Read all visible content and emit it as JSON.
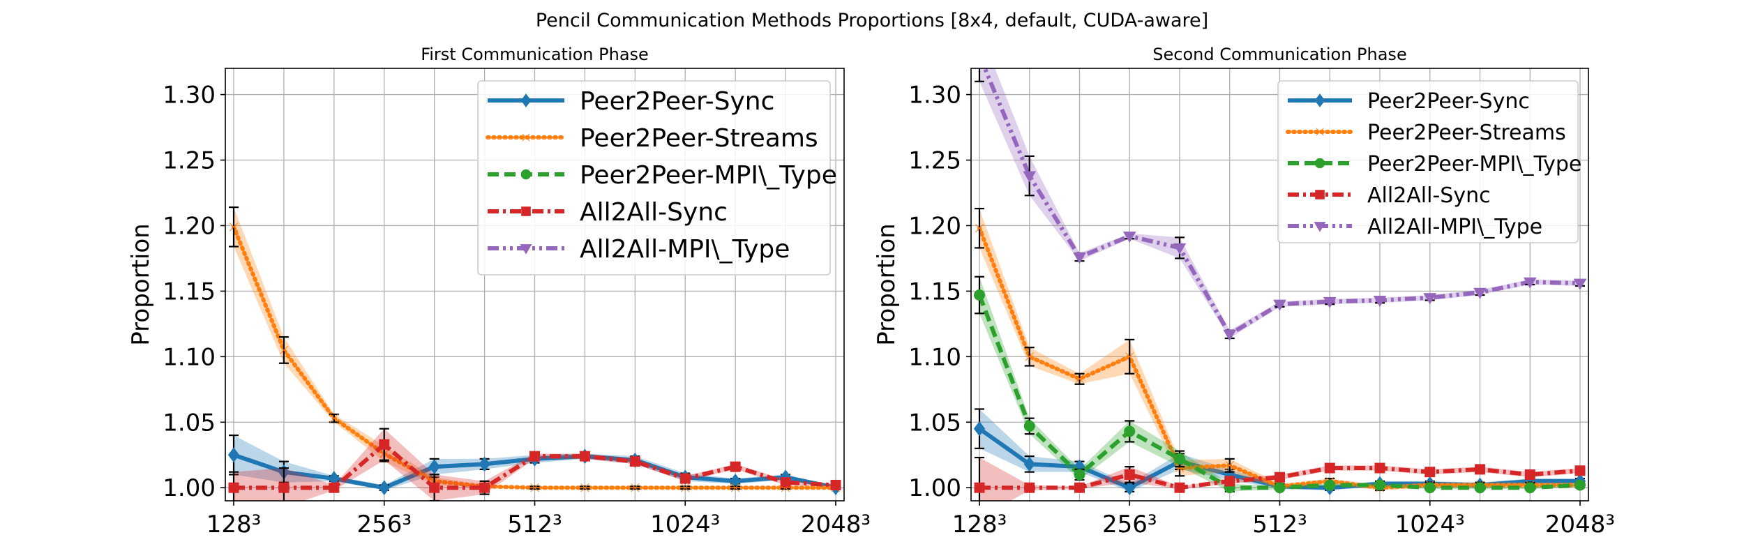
{
  "suptitle": "Pencil Communication Methods Proportions [8x4, default, CUDA-aware]",
  "series_styles": {
    "Peer2Peer-Sync": {
      "color": "#1f77b4",
      "dash": "",
      "marker": "diamond"
    },
    "Peer2Peer-Streams": {
      "color": "#ff7f0e",
      "dash": "2 6",
      "marker": "x"
    },
    "Peer2Peer-MPI\\_Type": {
      "color": "#2ca02c",
      "dash": "16 8",
      "marker": "circle"
    },
    "All2All-Sync": {
      "color": "#d62728",
      "dash": "16 6 4 6",
      "marker": "square"
    },
    "All2All-MPI\\_Type": {
      "color": "#9467bd",
      "dash": "16 6 4 6 4 6",
      "marker": "triangle-down"
    }
  },
  "chart_data": [
    {
      "type": "line",
      "title": "First Communication Phase",
      "xlabel": "",
      "ylabel": "Proportion",
      "x_ticks": [
        "128³",
        "256³",
        "512³",
        "1024³",
        "2048³"
      ],
      "x_positions": [
        "128³",
        "160³",
        "202³",
        "256³",
        "322³",
        "406³",
        "512³",
        "645³",
        "812³",
        "1024³",
        "1290³",
        "1625³",
        "2048³"
      ],
      "ylim": [
        0.99,
        1.32
      ],
      "yticks": [
        "1.00",
        "1.05",
        "1.10",
        "1.15",
        "1.20",
        "1.25",
        "1.30"
      ],
      "grid": true,
      "legend_position": "top-right",
      "series": [
        {
          "name": "Peer2Peer-Sync",
          "values": [
            1.025,
            1.012,
            1.007,
            1.0,
            1.016,
            1.018,
            1.022,
            1.024,
            1.021,
            1.008,
            1.005,
            1.008,
            1.0
          ],
          "errors": [
            0.015,
            0.008,
            0.002,
            0.002,
            0.006,
            0.004,
            0.003,
            0.002,
            0.003,
            0.003,
            0.002,
            0.002,
            0.001
          ]
        },
        {
          "name": "Peer2Peer-Streams",
          "values": [
            1.199,
            1.105,
            1.053,
            1.026,
            1.005,
            1.001,
            1.0,
            1.0,
            1.0,
            1.0,
            1.0,
            1.0,
            1.0
          ],
          "errors": [
            0.015,
            0.01,
            0.003,
            0.006,
            0.003,
            0.001,
            0.001,
            0.001,
            0.001,
            0.001,
            0.001,
            0.001,
            0.001
          ]
        },
        {
          "name": "Peer2Peer-MPI\\_Type",
          "values": [],
          "errors": []
        },
        {
          "name": "All2All-Sync",
          "values": [
            1.0,
            1.0,
            1.0,
            1.033,
            1.0,
            1.0,
            1.024,
            1.024,
            1.02,
            1.007,
            1.016,
            1.004,
            1.002
          ],
          "errors": [
            0.012,
            0.015,
            0.002,
            0.012,
            0.01,
            0.005,
            0.002,
            0.002,
            0.002,
            0.002,
            0.002,
            0.002,
            0.001
          ]
        },
        {
          "name": "All2All-MPI\\_Type",
          "values": [],
          "errors": []
        }
      ]
    },
    {
      "type": "line",
      "title": "Second Communication Phase",
      "xlabel": "",
      "ylabel": "Proportion",
      "x_ticks": [
        "128³",
        "256³",
        "512³",
        "1024³",
        "2048³"
      ],
      "x_positions": [
        "128³",
        "160³",
        "202³",
        "256³",
        "322³",
        "406³",
        "512³",
        "645³",
        "812³",
        "1024³",
        "1290³",
        "1625³",
        "2048³"
      ],
      "ylim": [
        0.99,
        1.32
      ],
      "yticks": [
        "1.00",
        "1.05",
        "1.10",
        "1.15",
        "1.20",
        "1.25",
        "1.30"
      ],
      "grid": true,
      "legend_position": "top-right",
      "series": [
        {
          "name": "Peer2Peer-Sync",
          "values": [
            1.045,
            1.018,
            1.016,
            1.0,
            1.02,
            1.01,
            1.001,
            1.0,
            1.003,
            1.003,
            1.002,
            1.005,
            1.005
          ],
          "errors": [
            0.015,
            0.006,
            0.004,
            0.003,
            0.006,
            0.004,
            0.002,
            0.002,
            0.002,
            0.002,
            0.002,
            0.002,
            0.002
          ]
        },
        {
          "name": "Peer2Peer-Streams",
          "values": [
            1.198,
            1.1,
            1.083,
            1.1,
            1.015,
            1.017,
            1.001,
            1.005,
            1.0,
            1.002,
            1.002,
            1.002,
            1.002
          ],
          "errors": [
            0.015,
            0.007,
            0.004,
            0.013,
            0.006,
            0.005,
            0.002,
            0.002,
            0.002,
            0.002,
            0.002,
            0.002,
            0.002
          ]
        },
        {
          "name": "Peer2Peer-MPI\\_Type",
          "values": [
            1.147,
            1.047,
            1.01,
            1.043,
            1.022,
            1.0,
            1.0,
            1.002,
            1.002,
            1.0,
            1.0,
            1.0,
            1.002
          ],
          "errors": [
            0.014,
            0.006,
            0.004,
            0.008,
            0.006,
            0.003,
            0.001,
            0.001,
            0.001,
            0.001,
            0.001,
            0.001,
            0.001
          ]
        },
        {
          "name": "All2All-Sync",
          "values": [
            1.0,
            1.0,
            1.0,
            1.01,
            1.0,
            1.005,
            1.008,
            1.015,
            1.015,
            1.012,
            1.014,
            1.01,
            1.013
          ],
          "errors": [
            0.023,
            0.002,
            0.001,
            0.006,
            0.001,
            0.002,
            0.002,
            0.002,
            0.002,
            0.002,
            0.002,
            0.002,
            0.002
          ]
        },
        {
          "name": "All2All-MPI\\_Type",
          "values": [
            1.33,
            1.238,
            1.176,
            1.192,
            1.183,
            1.117,
            1.14,
            1.142,
            1.143,
            1.145,
            1.149,
            1.157,
            1.156
          ],
          "errors": [
            0.02,
            0.015,
            0.003,
            0.002,
            0.008,
            0.003,
            0.002,
            0.002,
            0.002,
            0.002,
            0.002,
            0.002,
            0.002
          ]
        }
      ]
    }
  ]
}
